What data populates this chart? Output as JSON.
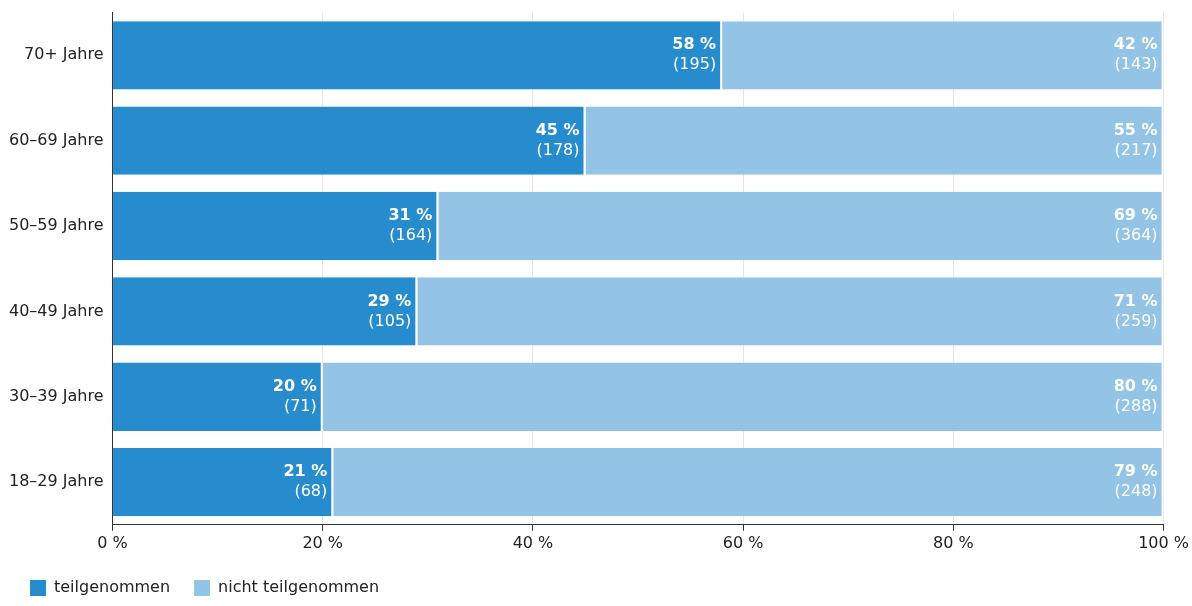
{
  "chart_data": {
    "type": "bar",
    "orientation": "horizontal",
    "stacked": true,
    "categories": [
      "70+ Jahre",
      "60–69 Jahre",
      "50–59 Jahre",
      "40–49 Jahre",
      "30–39 Jahre",
      "18–29 Jahre"
    ],
    "series": [
      {
        "name": "teilgenommen",
        "color": "#268ccd",
        "values": [
          58,
          45,
          31,
          29,
          20,
          21
        ],
        "value_labels": [
          "58 %\n(195)",
          "45 %\n(178)",
          "31 %\n(164)",
          "29 %\n(105)",
          "20 %\n(71)",
          "21 %\n(68)"
        ]
      },
      {
        "name": "nicht teilgenommen",
        "color": "#93c4e5",
        "values": [
          42,
          55,
          69,
          71,
          80,
          79
        ],
        "value_labels": [
          "42 %\n(143)",
          "55 %\n(217)",
          "69 %\n(364)",
          "71 %\n(259)",
          "80 %\n(288)",
          "79 %\n(248)"
        ]
      }
    ],
    "xlim": [
      0,
      100
    ],
    "xticks": [
      {
        "value": 0,
        "label": "0 %"
      },
      {
        "value": 20,
        "label": "20 %"
      },
      {
        "value": 40,
        "label": "40 %"
      },
      {
        "value": 60,
        "label": "60 %"
      },
      {
        "value": 80,
        "label": "80 %"
      },
      {
        "value": 100,
        "label": "100 %"
      }
    ],
    "grid": "x",
    "legend": "bottom left"
  }
}
